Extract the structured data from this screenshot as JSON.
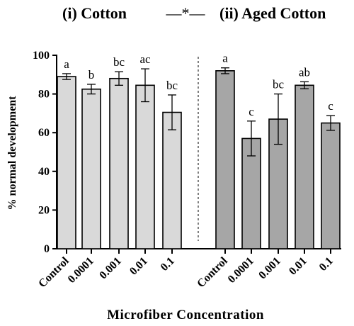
{
  "chart_data": {
    "type": "bar",
    "panels": [
      {
        "title": "(i) Cotton",
        "color": "#d9d9d9",
        "categories": [
          "Control",
          "0.0001",
          "0.001",
          "0.01",
          "0.1"
        ],
        "values": [
          89,
          82.5,
          88,
          84.5,
          70.5
        ],
        "errors": [
          1.5,
          2.5,
          3.5,
          8.5,
          9
        ],
        "letters": [
          "a",
          "b",
          "bc",
          "ac",
          "bc"
        ]
      },
      {
        "title": "(ii) Aged Cotton",
        "color": "#a6a6a6",
        "categories": [
          "Control",
          "0.0001",
          "0.001",
          "0.01",
          "0.1"
        ],
        "values": [
          92,
          57,
          67,
          84.5,
          65
        ],
        "errors": [
          1.5,
          9,
          13,
          1.8,
          3.8
        ],
        "letters": [
          "a",
          "c",
          "bc",
          "ab",
          "c"
        ]
      }
    ],
    "separator_label": "—*—",
    "ylabel": "% normal development",
    "xlabel": "Microfiber Concentration",
    "ylim": [
      0,
      100
    ],
    "yticks": [
      0,
      20,
      40,
      60,
      80,
      100
    ],
    "grid": false,
    "legend": "none"
  }
}
